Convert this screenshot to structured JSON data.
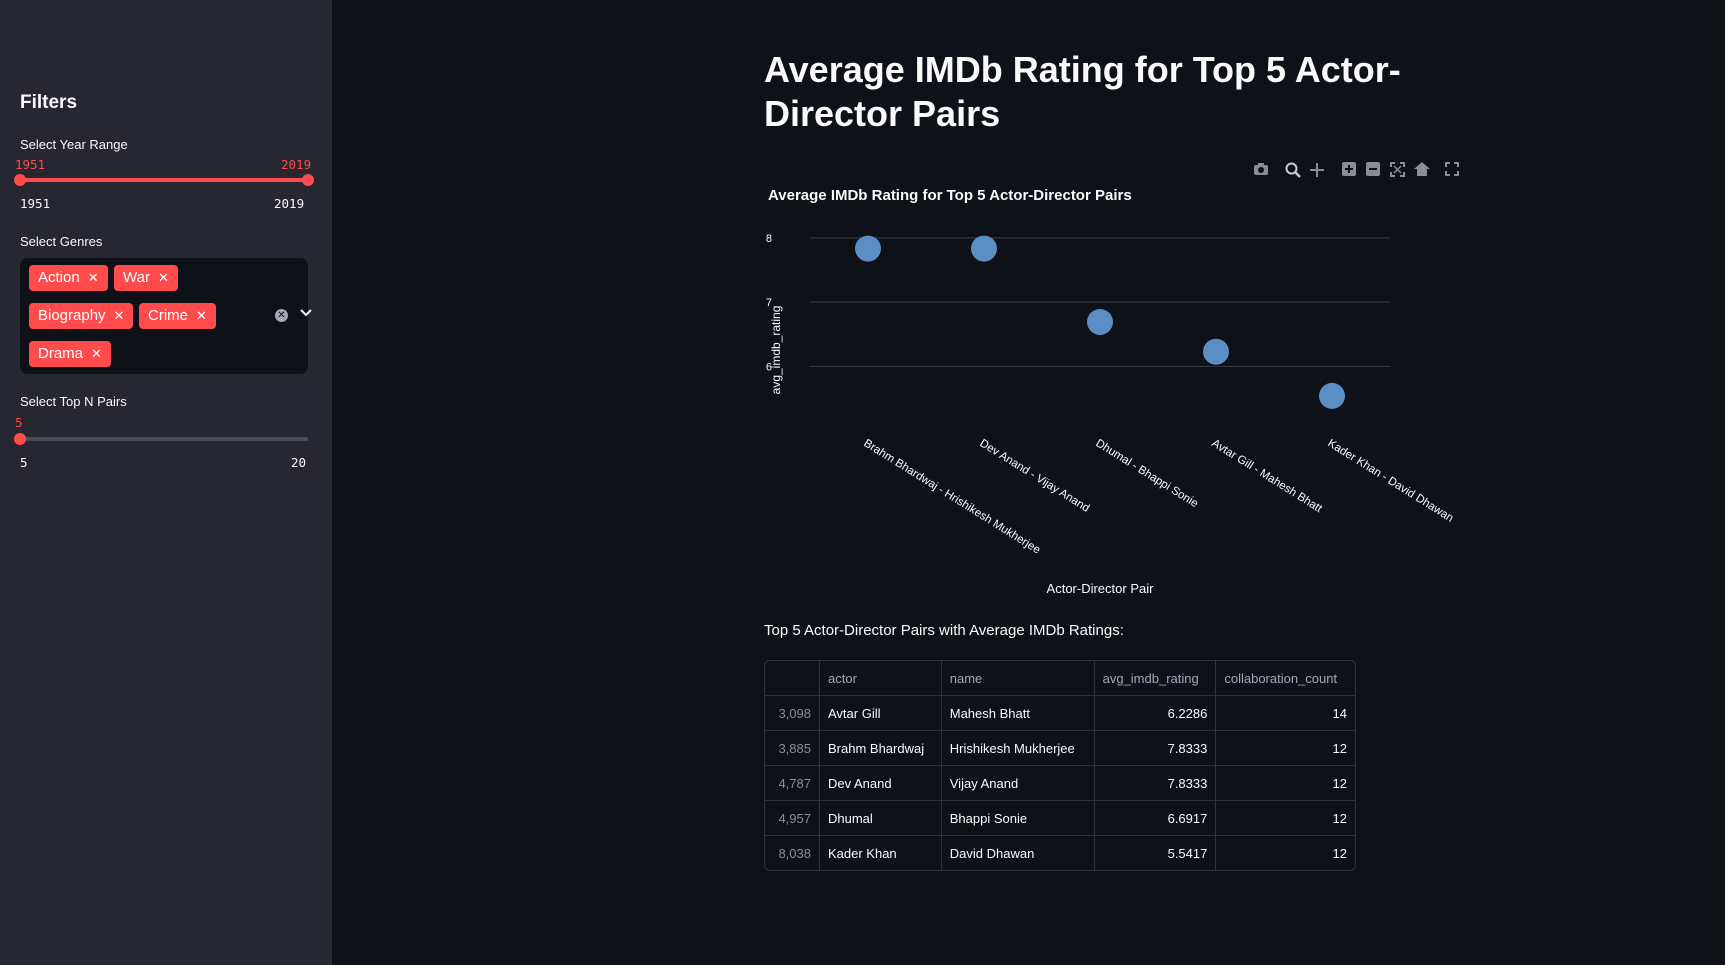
{
  "sidebar": {
    "title": "Filters",
    "year": {
      "label": "Select Year Range",
      "value_low": "1951",
      "value_high": "2019",
      "min": "1951",
      "max": "2019"
    },
    "genres": {
      "label": "Select Genres",
      "selected": [
        "Action",
        "War",
        "Biography",
        "Crime",
        "Drama"
      ]
    },
    "topn": {
      "label": "Select Top N Pairs",
      "value": "5",
      "min": "5",
      "max": "20"
    }
  },
  "main": {
    "title": "Average IMDb Rating for Top 5 Actor-Director Pairs",
    "toolbar": [
      "camera-icon",
      "zoom-icon",
      "pan-icon",
      "zoom-in-icon",
      "zoom-out-icon",
      "autoscale-icon",
      "home-icon",
      "fullscreen-icon"
    ],
    "table_caption": "Top 5 Actor-Director Pairs with Average IMDb Ratings:",
    "table": {
      "columns": [
        "",
        "actor",
        "name",
        "avg_imdb_rating",
        "collaboration_count"
      ],
      "rows": [
        [
          "3,098",
          "Avtar Gill",
          "Mahesh Bhatt",
          "6.2286",
          "14"
        ],
        [
          "3,885",
          "Brahm Bhardwaj",
          "Hrishikesh Mukherjee",
          "7.8333",
          "12"
        ],
        [
          "4,787",
          "Dev Anand",
          "Vijay Anand",
          "7.8333",
          "12"
        ],
        [
          "4,957",
          "Dhumal",
          "Bhappi Sonie",
          "6.6917",
          "12"
        ],
        [
          "8,038",
          "Kader Khan",
          "David Dhawan",
          "5.5417",
          "12"
        ]
      ]
    }
  },
  "chart_data": {
    "type": "scatter",
    "title": "Average IMDb Rating for Top 5 Actor-Director Pairs",
    "xlabel": "Actor-Director Pair",
    "ylabel": "avg_imdb_rating",
    "categories": [
      "Brahm Bhardwaj - Hrishikesh Mukherjee",
      "Dev Anand - Vijay Anand",
      "Dhumal - Bhappi Sonie",
      "Avtar Gill - Mahesh Bhatt",
      "Kader Khan - David Dhawan"
    ],
    "values": [
      7.8333,
      7.8333,
      6.6917,
      6.2286,
      5.5417
    ],
    "yticks": [
      6,
      7,
      8
    ],
    "ylim": [
      5.4,
      8.2
    ],
    "grid": true,
    "marker_color": "#5b8ec4"
  },
  "colors": {
    "accent": "#ff4b4b",
    "background": "#0e1117",
    "sidebar": "#262730"
  }
}
